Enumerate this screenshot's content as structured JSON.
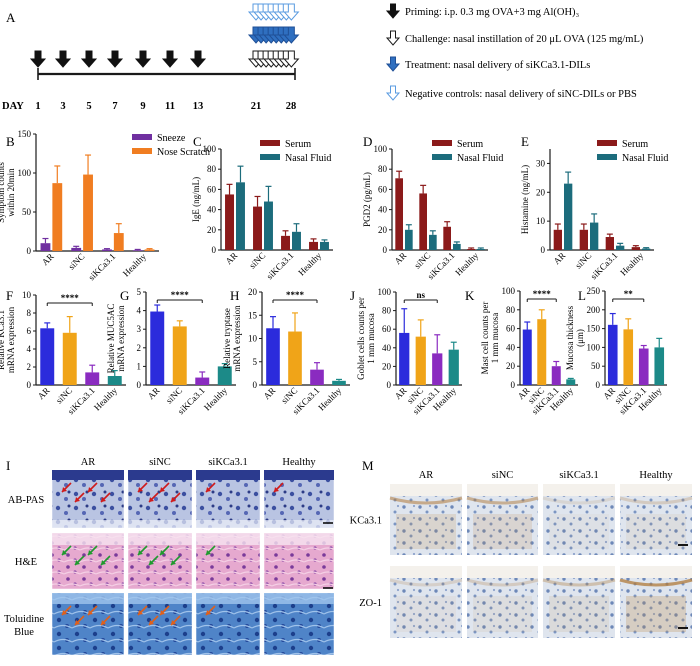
{
  "panel_a": {
    "label": "A",
    "day_label": "DAY",
    "days": [
      "1",
      "3",
      "5",
      "7",
      "9",
      "11",
      "13",
      "21",
      "28"
    ],
    "legend": [
      "Priming: i.p. 0.3 mg OVA+3 mg Al(OH)₃",
      "Challenge: nasal instillation of 20 μL OVA (125 mg/mL)",
      "Treatment: nasal delivery of siKCa3.1-DILs",
      "Negative controls: nasal delivery of siNC-DILs or PBS"
    ],
    "colors": {
      "priming": "#111111",
      "challenge": "#ffffff",
      "treatment": "#2f6fc0",
      "negative": "#ffffff",
      "negative_edge": "#5a9be0"
    }
  },
  "chart_data": [
    {
      "panel": "B",
      "type": "bar",
      "categories": [
        "AR",
        "siNC",
        "siKCa3.1",
        "Healthy"
      ],
      "series": [
        {
          "name": "Sneeze",
          "values": [
            10,
            4,
            2,
            1
          ],
          "errors": [
            6,
            2,
            1,
            1
          ],
          "color": "#7030a0"
        },
        {
          "name": "Nose Scratch",
          "values": [
            87,
            98,
            23,
            2
          ],
          "errors": [
            22,
            25,
            12,
            1
          ],
          "color": "#f07d21"
        }
      ],
      "ylabel": "Symptom counts within 20min",
      "yticks": [
        "0",
        "50",
        "100",
        "150"
      ],
      "ylim": [
        0,
        150
      ]
    },
    {
      "panel": "C",
      "type": "bar",
      "categories": [
        "AR",
        "siNC",
        "siKCa3.1",
        "Healthy"
      ],
      "series": [
        {
          "name": "Serum",
          "values": [
            55,
            43,
            14,
            8
          ],
          "errors": [
            10,
            10,
            5,
            3
          ],
          "color": "#8b1a1a"
        },
        {
          "name": "Nasal Fluid",
          "values": [
            67,
            48,
            18,
            8
          ],
          "errors": [
            16,
            15,
            8,
            2
          ],
          "color": "#1c6c7c"
        }
      ],
      "ylabel": "IgE (ng/mL)",
      "yticks": [
        "0",
        "20",
        "40",
        "60",
        "80",
        "100"
      ],
      "ylim": [
        0,
        100
      ]
    },
    {
      "panel": "D",
      "type": "bar",
      "categories": [
        "AR",
        "siNC",
        "siKCa3.1",
        "Healthy"
      ],
      "series": [
        {
          "name": "Serum",
          "values": [
            71,
            56,
            23,
            1
          ],
          "errors": [
            7,
            8,
            5,
            1
          ],
          "color": "#8b1a1a"
        },
        {
          "name": "Nasal Fluid",
          "values": [
            20,
            15,
            6,
            1
          ],
          "errors": [
            5,
            4,
            2,
            1
          ],
          "color": "#1c6c7c"
        }
      ],
      "ylabel": "PGD2 (pg/mL)",
      "yticks": [
        "0",
        "20",
        "40",
        "60",
        "80",
        "100"
      ],
      "ylim": [
        0,
        100
      ]
    },
    {
      "panel": "E",
      "type": "bar",
      "categories": [
        "AR",
        "siNC",
        "siKCa3.1",
        "Healthy"
      ],
      "series": [
        {
          "name": "Serum",
          "values": [
            7,
            7,
            4.5,
            1
          ],
          "errors": [
            2,
            2,
            1,
            0.5
          ],
          "color": "#8b1a1a"
        },
        {
          "name": "Nasal Fluid",
          "values": [
            23,
            9.5,
            1.5,
            0.5
          ],
          "errors": [
            4,
            3,
            0.8,
            0.3
          ],
          "color": "#1c6c7c"
        }
      ],
      "ylabel": "Histamine (ng/mL)",
      "yticks": [
        "0",
        "10",
        "20",
        "30"
      ],
      "ylim": [
        0,
        35
      ]
    },
    {
      "panel": "F",
      "type": "bar",
      "categories": [
        "AR",
        "siNC",
        "siKCa3.1",
        "Healthy"
      ],
      "series": [
        {
          "name": "",
          "values": [
            6.3,
            5.8,
            1.4,
            1.0
          ],
          "errors": [
            0.6,
            1.8,
            0.8,
            0.6
          ],
          "colors": [
            "#2b2bdc",
            "#f0a418",
            "#8a2bc0",
            "#1c8a88"
          ]
        }
      ],
      "ylabel": "Relative KCa3.1 mRNA expression",
      "yticks": [
        "0",
        "2",
        "4",
        "6",
        "8",
        "10"
      ],
      "ylim": [
        0,
        10
      ],
      "sig": "****"
    },
    {
      "panel": "G",
      "type": "bar",
      "categories": [
        "AR",
        "siNC",
        "siKCa3.1",
        "Healthy"
      ],
      "series": [
        {
          "name": "",
          "values": [
            3.95,
            3.15,
            0.4,
            1.0
          ],
          "errors": [
            0.35,
            0.3,
            0.3,
            0.15
          ],
          "colors": [
            "#2b2bdc",
            "#f0a418",
            "#8a2bc0",
            "#1c8a88"
          ]
        }
      ],
      "ylabel": "Relative MUC5AC mRNA expression",
      "yticks": [
        "0",
        "1",
        "2",
        "3",
        "4",
        "5"
      ],
      "ylim": [
        0,
        5
      ],
      "sig": "****"
    },
    {
      "panel": "H",
      "type": "bar",
      "categories": [
        "AR",
        "siNC",
        "siKCa3.1",
        "Healthy"
      ],
      "series": [
        {
          "name": "",
          "values": [
            12.2,
            11.5,
            3.3,
            0.9
          ],
          "errors": [
            2.5,
            4.0,
            1.5,
            0.3
          ],
          "colors": [
            "#2b2bdc",
            "#f0a418",
            "#8a2bc0",
            "#1c8a88"
          ]
        }
      ],
      "ylabel": "Relative tryptase mRNA expression",
      "yticks": [
        "0",
        "5",
        "10",
        "15",
        "20"
      ],
      "ylim": [
        0,
        20
      ],
      "sig": "****"
    },
    {
      "panel": "J",
      "type": "bar",
      "categories": [
        "AR",
        "siNC",
        "siKCa3.1",
        "Healthy"
      ],
      "series": [
        {
          "name": "",
          "values": [
            56,
            52,
            34,
            38
          ],
          "errors": [
            26,
            18,
            20,
            8
          ],
          "colors": [
            "#2b2bdc",
            "#f0a418",
            "#8a2bc0",
            "#1c8a88"
          ]
        }
      ],
      "ylabel": "Goblet cells counts per 1 mm mucosa",
      "yticks": [
        "0",
        "20",
        "40",
        "60",
        "80",
        "100"
      ],
      "ylim": [
        0,
        100
      ],
      "sig": "ns"
    },
    {
      "panel": "K",
      "type": "bar",
      "categories": [
        "AR",
        "siNC",
        "siKCa3.1",
        "Healthy"
      ],
      "series": [
        {
          "name": "",
          "values": [
            59,
            70,
            20,
            6
          ],
          "errors": [
            8,
            10,
            5,
            1
          ],
          "colors": [
            "#2b2bdc",
            "#f0a418",
            "#8a2bc0",
            "#1c8a88"
          ]
        }
      ],
      "ylabel": "Mast cell counts per 1 mm mucosa",
      "yticks": [
        "0",
        "20",
        "40",
        "60",
        "80",
        "100"
      ],
      "ylim": [
        0,
        100
      ],
      "sig": "****"
    },
    {
      "panel": "L",
      "type": "bar",
      "categories": [
        "AR",
        "siNC",
        "siKCa3.1",
        "Healthy"
      ],
      "series": [
        {
          "name": "",
          "values": [
            160,
            148,
            97,
            100
          ],
          "errors": [
            30,
            28,
            8,
            24
          ],
          "colors": [
            "#2b2bdc",
            "#f0a418",
            "#8a2bc0",
            "#1c8a88"
          ]
        }
      ],
      "ylabel": "Mucosa thickness (μm)",
      "yticks": [
        "0",
        "50",
        "100",
        "150",
        "200",
        "250"
      ],
      "ylim": [
        0,
        250
      ],
      "sig": "**"
    }
  ],
  "panel_i": {
    "label": "I",
    "columns": [
      "AR",
      "siNC",
      "siKCa3.1",
      "Healthy"
    ],
    "rows": [
      "AB-PAS",
      "H&E",
      "Toluidine Blue"
    ]
  },
  "panel_m": {
    "label": "M",
    "columns": [
      "AR",
      "siNC",
      "siKCa3.1",
      "Healthy"
    ],
    "rows": [
      "KCa3.1",
      "ZO-1"
    ]
  }
}
